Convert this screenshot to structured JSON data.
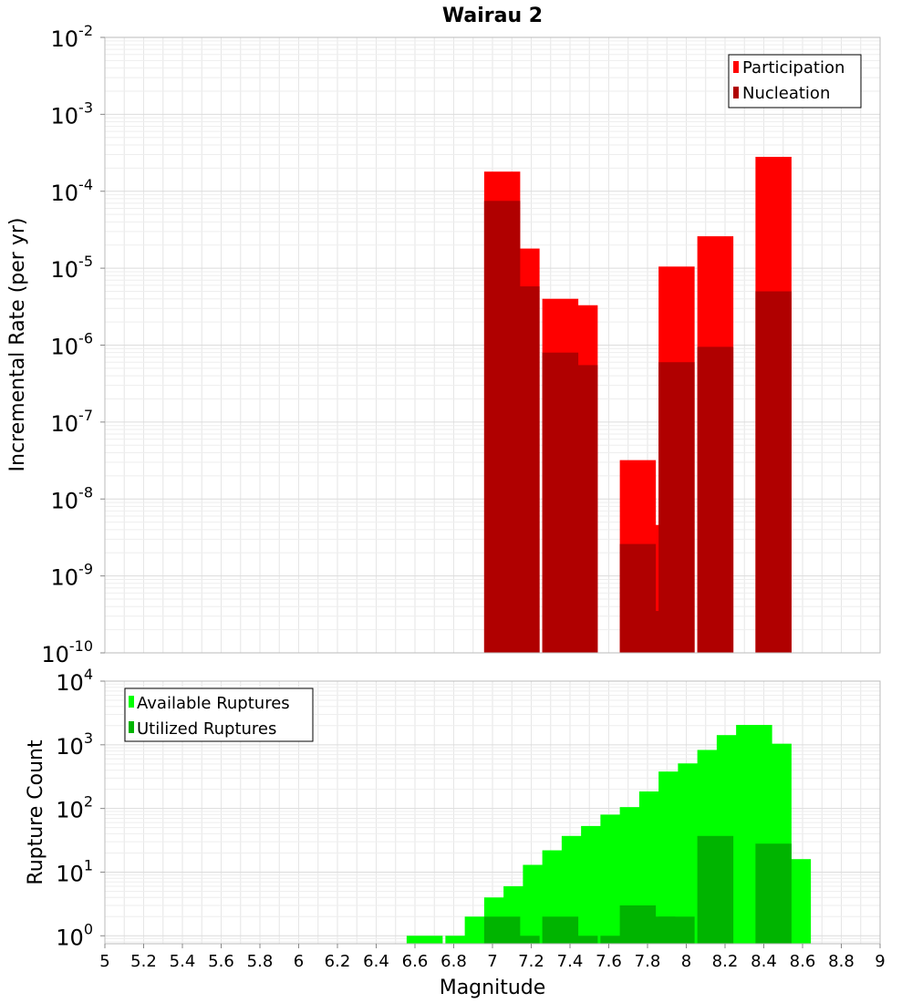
{
  "title": "Wairau 2",
  "colors": {
    "participation": "#ff0000",
    "nucleation": "#b00000",
    "available": "#00ff00",
    "utilized": "#00b400",
    "grid": "#e6e6e6",
    "frame": "#bbbbbb"
  },
  "chart_data": [
    {
      "type": "bar",
      "title": "Wairau 2",
      "xlabel": "",
      "ylabel": "Incremental Rate (per yr)",
      "yscale": "log",
      "xlim": [
        5,
        9
      ],
      "ylim": [
        1e-10,
        0.01
      ],
      "grid": true,
      "legend_position": "top-right",
      "y_tick_bases": [
        "10",
        "10",
        "10",
        "10",
        "10",
        "10",
        "10",
        "10",
        "10"
      ],
      "y_tick_exponents": [
        "-10",
        "-9",
        "-8",
        "-7",
        "-6",
        "-5",
        "-4",
        "-3",
        "-2"
      ],
      "series": [
        {
          "name": "Participation",
          "x": [
            7.05,
            7.15,
            7.35,
            7.45,
            7.75,
            7.85,
            7.95,
            8.15,
            8.45
          ],
          "values": [
            0.00018,
            1.8e-05,
            4e-06,
            3.3e-06,
            3.2e-08,
            4.6e-09,
            1.05e-05,
            2.6e-05,
            0.00028
          ]
        },
        {
          "name": "Nucleation",
          "x": [
            7.05,
            7.15,
            7.35,
            7.45,
            7.75,
            7.85,
            7.95,
            8.15,
            8.45
          ],
          "values": [
            7.5e-05,
            5.8e-06,
            8e-07,
            5.5e-07,
            2.6e-09,
            3.5e-10,
            6e-07,
            9.5e-07,
            5e-06
          ]
        }
      ]
    },
    {
      "type": "bar",
      "title": "",
      "xlabel": "Magnitude",
      "ylabel": "Rupture Count",
      "yscale": "log",
      "xlim": [
        5,
        9
      ],
      "ylim": [
        0.75,
        10000
      ],
      "grid": true,
      "legend_position": "top-left",
      "y_tick_bases": [
        "10",
        "10",
        "10",
        "10",
        "10"
      ],
      "y_tick_exponents": [
        "0",
        "1",
        "2",
        "3",
        "4"
      ],
      "x_ticks": [
        "5",
        "5.2",
        "5.4",
        "5.6",
        "5.8",
        "6",
        "6.2",
        "6.4",
        "6.6",
        "6.8",
        "7",
        "7.2",
        "7.4",
        "7.6",
        "7.8",
        "8",
        "8.2",
        "8.4",
        "8.6",
        "8.8",
        "9"
      ],
      "series": [
        {
          "name": "Available Ruptures",
          "x": [
            6.65,
            6.85,
            6.95,
            7.05,
            7.15,
            7.25,
            7.35,
            7.45,
            7.55,
            7.65,
            7.75,
            7.85,
            7.95,
            8.05,
            8.15,
            8.25,
            8.35,
            8.45,
            8.55
          ],
          "values": [
            1,
            1,
            2,
            4,
            6,
            13,
            22,
            37,
            53,
            80,
            105,
            185,
            380,
            510,
            830,
            1420,
            2050,
            1040,
            16
          ]
        },
        {
          "name": "Utilized Ruptures",
          "x": [
            7.05,
            7.15,
            7.35,
            7.45,
            7.65,
            7.75,
            7.85,
            7.95,
            8.15,
            8.45
          ],
          "values": [
            2,
            1,
            2,
            1,
            1,
            3,
            2,
            2,
            37,
            28
          ]
        }
      ]
    }
  ]
}
